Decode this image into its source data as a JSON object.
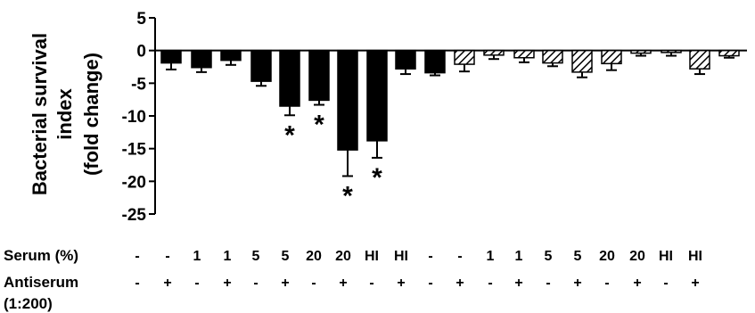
{
  "chart_data": {
    "type": "bar",
    "ylabel_lines": [
      "Bacterial survival",
      "index",
      "(fold change)"
    ],
    "ylim": [
      -25,
      5
    ],
    "yticks": [
      5,
      0,
      -5,
      -10,
      -15,
      -20,
      -25
    ],
    "series": [
      {
        "pattern": "solid",
        "color": "#000000",
        "values": [
          -1.9,
          -2.6,
          -1.5,
          -4.7,
          -8.5,
          -7.6,
          -15.2,
          -13.8,
          -2.8,
          -3.4
        ],
        "errors": [
          1.0,
          0.7,
          0.7,
          0.7,
          1.4,
          0.7,
          4.0,
          2.6,
          0.8,
          0.4
        ],
        "significant": [
          false,
          false,
          false,
          false,
          true,
          true,
          true,
          true,
          false,
          false
        ]
      },
      {
        "pattern": "hatched",
        "color": "#000000",
        "values": [
          -2.1,
          -0.7,
          -1.1,
          -1.9,
          -3.3,
          -2.0,
          -0.4,
          -0.3,
          -2.8,
          -0.8
        ],
        "errors": [
          1.1,
          0.6,
          0.7,
          0.5,
          0.8,
          1.0,
          0.4,
          0.5,
          0.8,
          0.3
        ],
        "significant": [
          false,
          false,
          false,
          false,
          false,
          false,
          false,
          false,
          false,
          false
        ]
      }
    ],
    "significance_marker": "*",
    "rows": [
      {
        "label": "Serum (%)",
        "values": [
          "-",
          "-",
          "1",
          "1",
          "5",
          "5",
          "20",
          "20",
          "HI",
          "HI",
          "-",
          "-",
          "1",
          "1",
          "5",
          "5",
          "20",
          "20",
          "HI",
          "HI"
        ]
      },
      {
        "label": "Antiserum",
        "label2": "(1:200)",
        "values": [
          "-",
          "+",
          "-",
          "+",
          "-",
          "+",
          "-",
          "+",
          "-",
          "+",
          "-",
          "+",
          "-",
          "+",
          "-",
          "+",
          "-",
          "+",
          "-",
          "+"
        ]
      }
    ]
  }
}
